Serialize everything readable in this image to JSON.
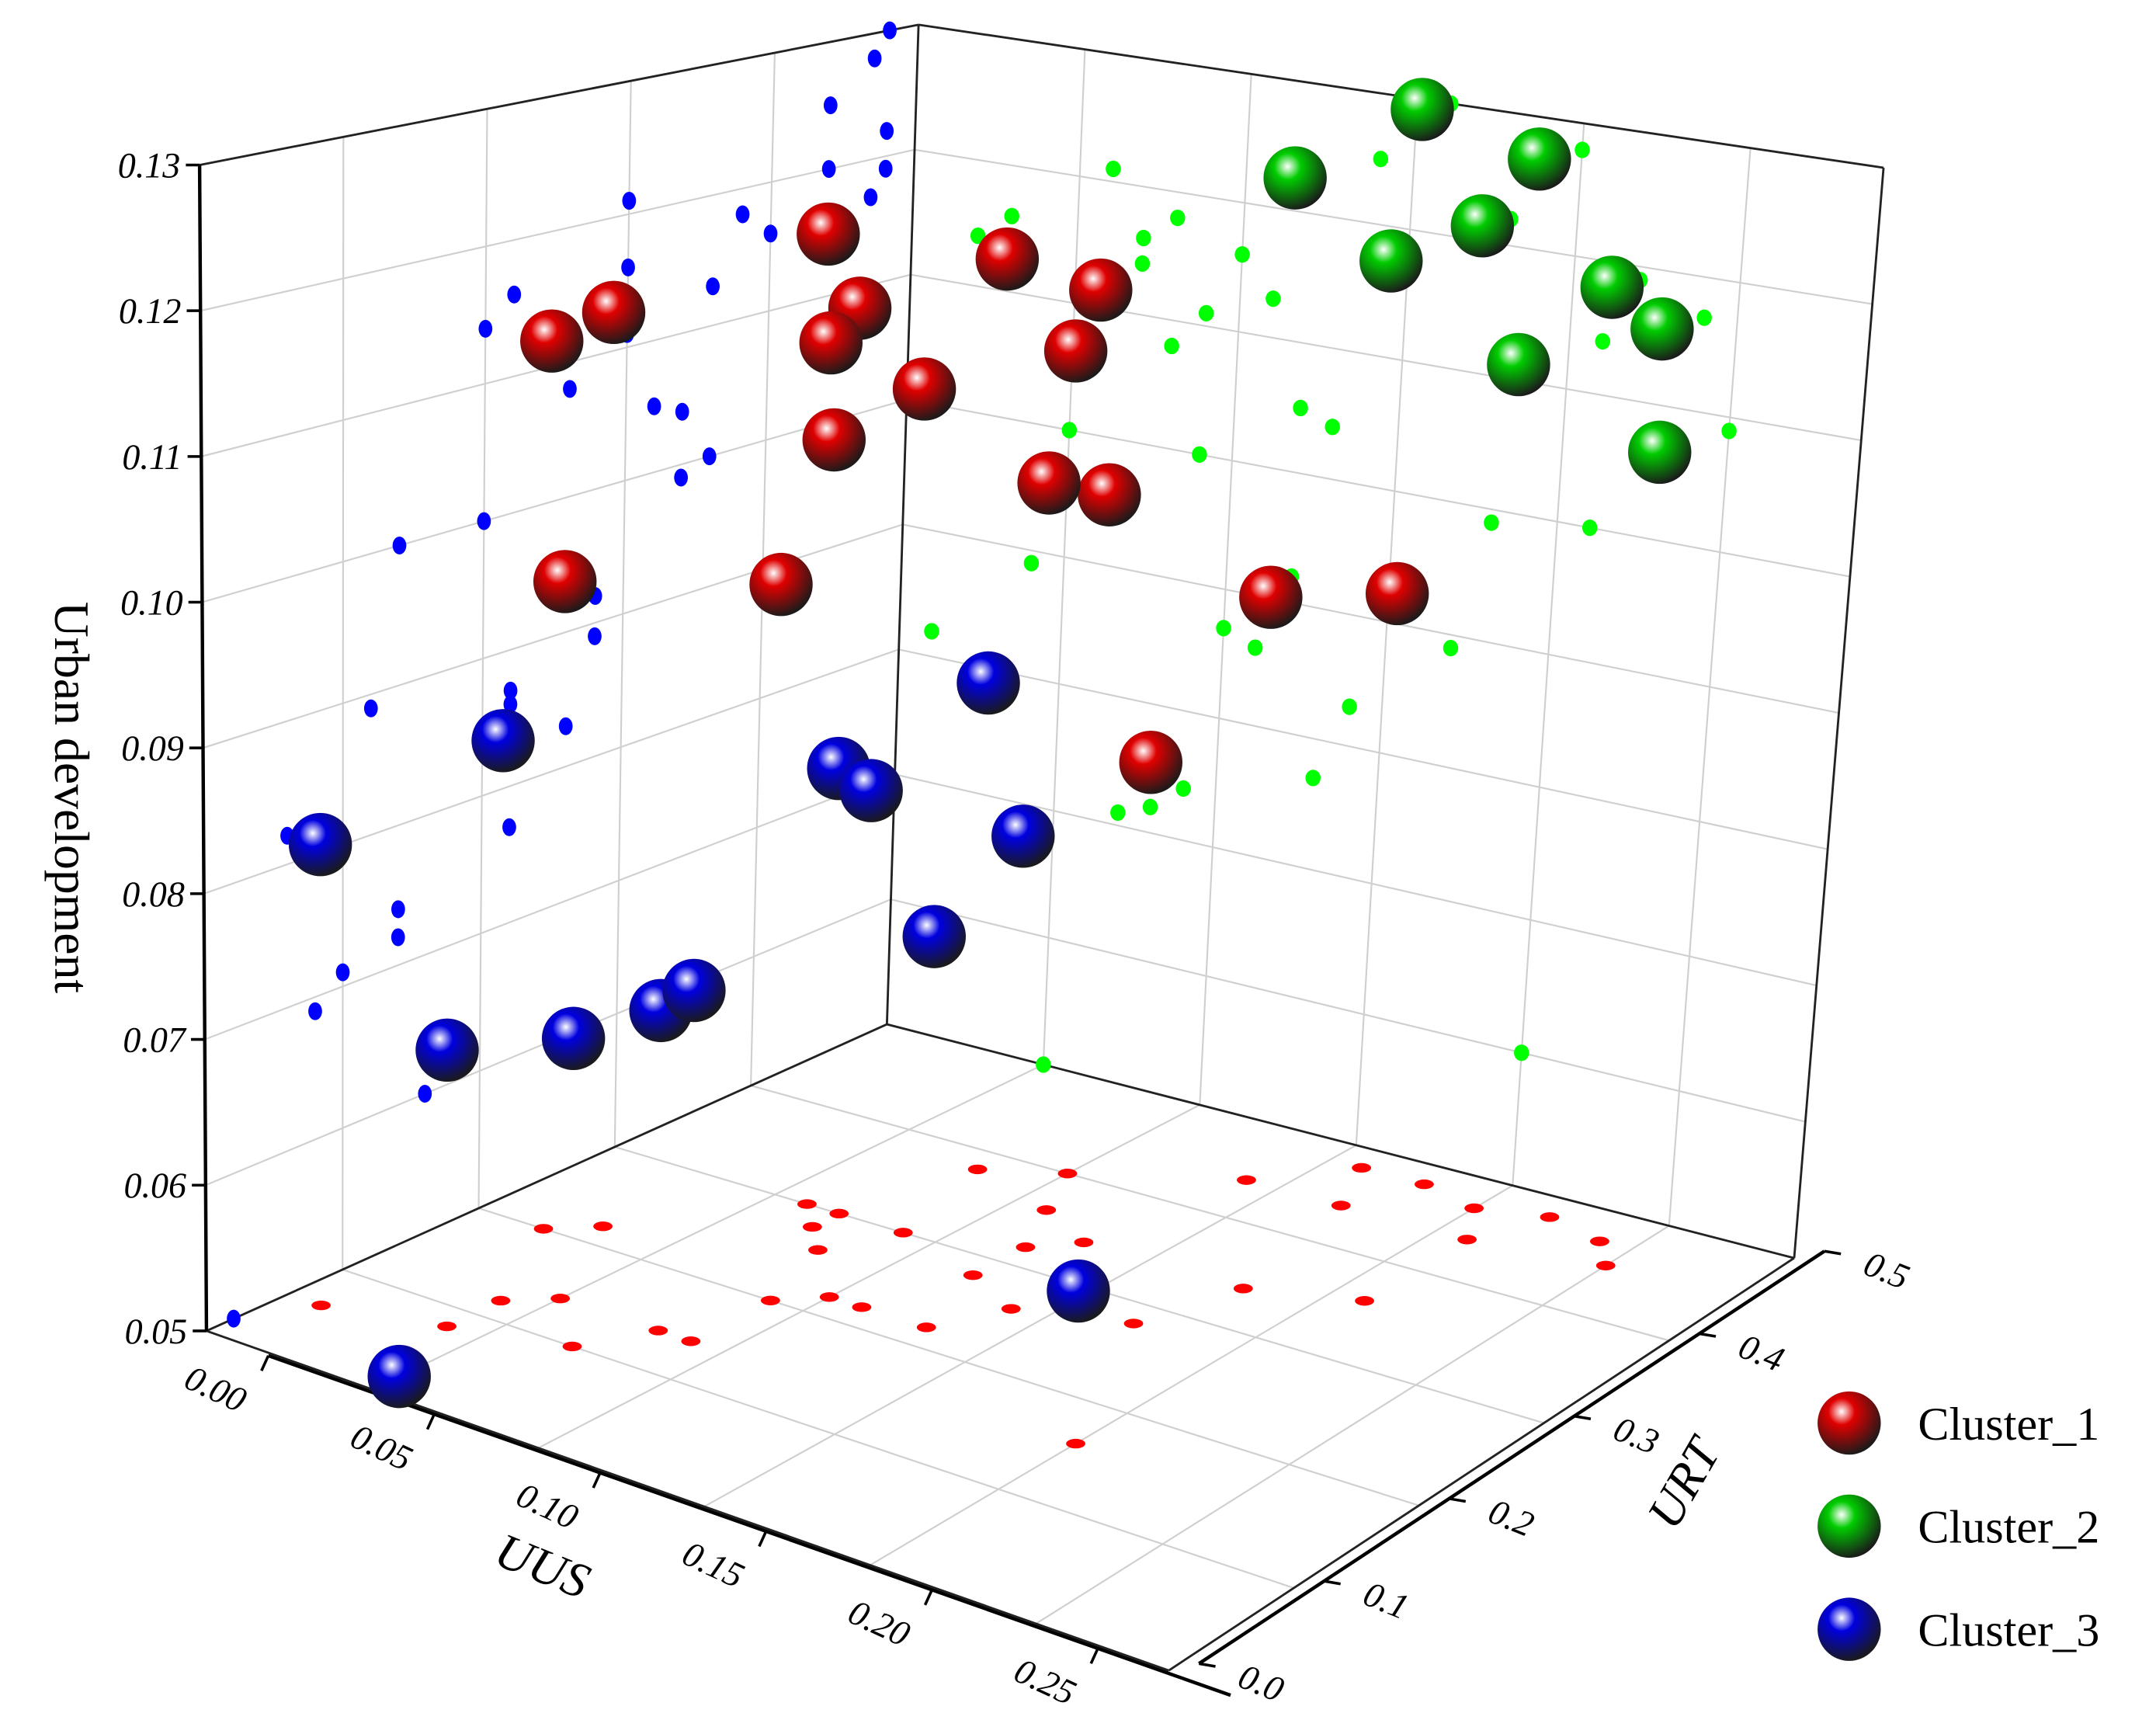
{
  "chart_data": {
    "type": "scatter3d",
    "xlabel": "UUS",
    "ylabel": "URT",
    "zlabel": "Urban development",
    "xlim": [
      0,
      0.29
    ],
    "ylim": [
      0,
      0.5
    ],
    "zlim": [
      0.05,
      0.13
    ],
    "xticks": [
      {
        "value": 0,
        "label": "0.00"
      },
      0.05,
      {
        "value": 0.1,
        "label": "0.10"
      },
      0.15,
      {
        "value": 0.2,
        "label": "0.20"
      },
      0.25
    ],
    "yticks": [
      {
        "value": 0,
        "label": "0.0"
      },
      0.1,
      0.2,
      0.3,
      0.4,
      0.5
    ],
    "zticks": [
      0.05,
      0.06,
      0.07,
      0.08,
      0.09,
      {
        "value": 0.1,
        "label": "0.10"
      },
      0.11,
      0.12,
      0.13
    ],
    "grid": true,
    "projection_colors": {
      "yz_wall": "#0000ff",
      "xz_wall": "#00ff00",
      "floor": "#ff0000"
    },
    "series": [
      {
        "name": "Cluster_1",
        "color": "#e00000",
        "x": [
          0.06,
          0.03,
          0.02,
          0.08,
          0.1,
          0.07,
          0.07,
          0.09,
          0.11,
          0.08,
          0.12,
          0.05,
          0.09,
          0.18,
          0.21,
          0.17,
          0.13
        ],
        "y": [
          0.3,
          0.22,
          0.2,
          0.38,
          0.4,
          0.3,
          0.28,
          0.3,
          0.36,
          0.26,
          0.32,
          0.14,
          0.2,
          0.34,
          0.36,
          0.28,
          0.34
        ],
        "z": [
          0.121,
          0.116,
          0.114,
          0.118,
          0.116,
          0.116,
          0.114,
          0.111,
          0.113,
          0.108,
          0.105,
          0.1,
          0.1,
          0.099,
          0.1,
          0.089,
          0.104
        ]
      },
      {
        "name": "Cluster_2",
        "color": "#00cc00",
        "x": [
          0.16,
          0.14,
          0.18,
          0.17,
          0.22,
          0.24,
          0.21,
          0.25,
          0.2
        ],
        "y": [
          0.48,
          0.44,
          0.48,
          0.44,
          0.48,
          0.47,
          0.44,
          0.45,
          0.47
        ],
        "z": [
          0.13,
          0.125,
          0.122,
          0.12,
          0.119,
          0.117,
          0.114,
          0.109,
          0.128
        ]
      },
      {
        "name": "Cluster_3",
        "color": "#0000e0",
        "x": [
          0.04,
          0.01,
          0.12,
          0.1,
          0.11,
          0.14,
          0.13,
          0.08,
          0.07,
          0.04,
          0.2,
          0.05,
          0.09
        ],
        "y": [
          0.12,
          0.06,
          0.28,
          0.22,
          0.22,
          0.26,
          0.22,
          0.14,
          0.1,
          0.08,
          0.16,
          0.02,
          0.14
        ],
        "z": [
          0.089,
          0.082,
          0.092,
          0.087,
          0.086,
          0.083,
          0.077,
          0.072,
          0.071,
          0.069,
          0.06,
          0.05,
          0.074
        ]
      }
    ]
  }
}
